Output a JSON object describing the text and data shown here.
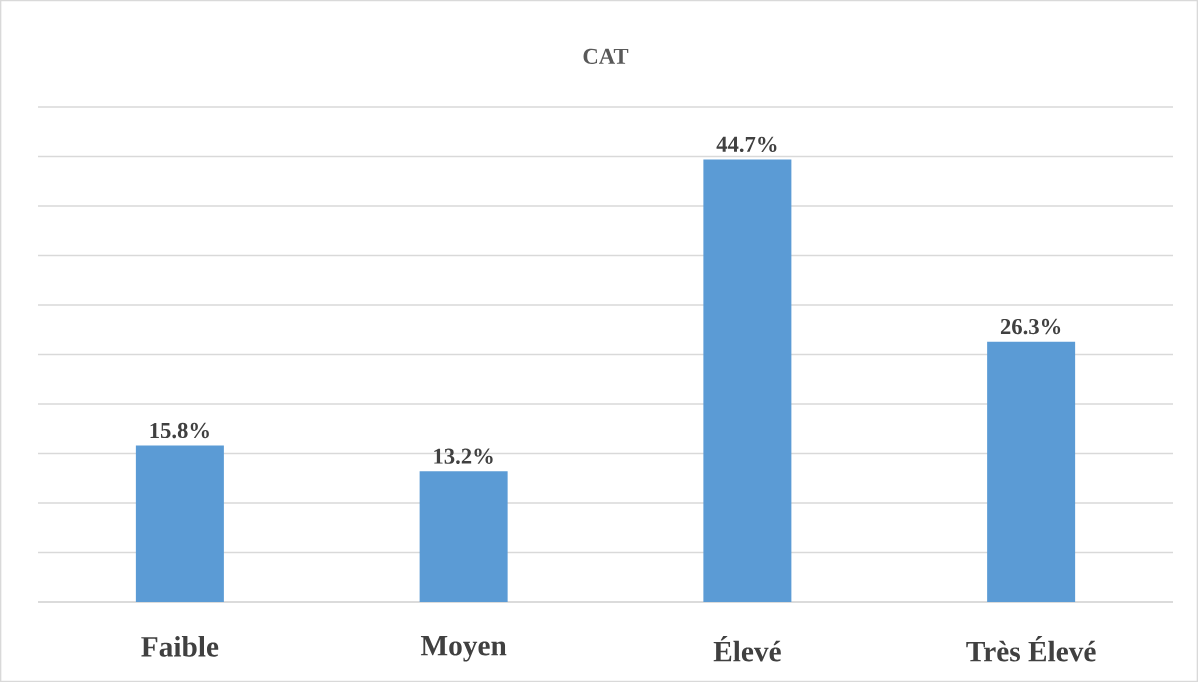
{
  "chart_data": {
    "type": "bar",
    "title": "CAT",
    "categories": [
      "Faible",
      "Moyen",
      "Élevé",
      "Très Élevé"
    ],
    "values": [
      15.8,
      13.2,
      44.7,
      26.3
    ],
    "value_labels": [
      "15.8%",
      "13.2%",
      "44.7%",
      "26.3%"
    ],
    "color": "#5b9bd5",
    "ylim": [
      0,
      50
    ],
    "yticks": [
      {
        "value": 0,
        "label": null
      },
      {
        "value": 5,
        "label": null
      },
      {
        "value": 10,
        "label": null
      },
      {
        "value": 15,
        "label": null
      },
      {
        "value": 20,
        "label": null
      },
      {
        "value": 25,
        "label": null
      },
      {
        "value": 30,
        "label": null
      },
      {
        "value": 35,
        "label": null
      },
      {
        "value": 40,
        "label": null
      },
      {
        "value": 45,
        "label": null
      },
      {
        "value": 50,
        "label": null
      }
    ],
    "grid": "y",
    "tick_labels": "x"
  }
}
